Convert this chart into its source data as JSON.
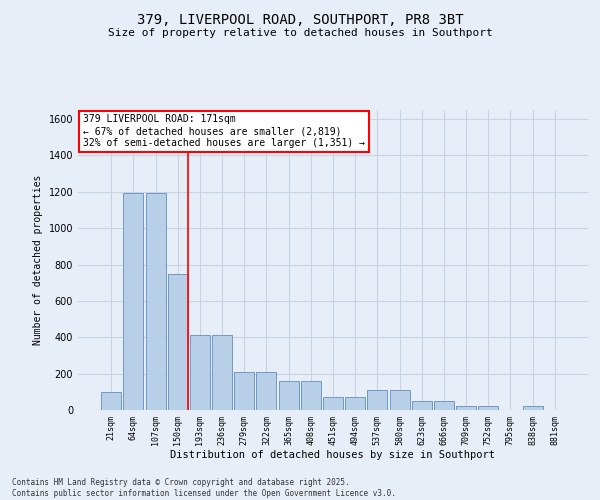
{
  "title": "379, LIVERPOOL ROAD, SOUTHPORT, PR8 3BT",
  "subtitle": "Size of property relative to detached houses in Southport",
  "xlabel": "Distribution of detached houses by size in Southport",
  "ylabel": "Number of detached properties",
  "categories": [
    "21sqm",
    "64sqm",
    "107sqm",
    "150sqm",
    "193sqm",
    "236sqm",
    "279sqm",
    "322sqm",
    "365sqm",
    "408sqm",
    "451sqm",
    "494sqm",
    "537sqm",
    "580sqm",
    "623sqm",
    "666sqm",
    "709sqm",
    "752sqm",
    "795sqm",
    "838sqm",
    "881sqm"
  ],
  "values": [
    100,
    1195,
    1195,
    750,
    415,
    415,
    210,
    210,
    160,
    160,
    70,
    70,
    110,
    110,
    50,
    50,
    20,
    20,
    0,
    20,
    0
  ],
  "bar_color": "#b8cfe8",
  "bar_edge_color": "#6090c0",
  "grid_color": "#c8d4e4",
  "background_color": "#e8eef8",
  "vline_x_index": 3,
  "vline_color": "red",
  "annotation_text": "379 LIVERPOOL ROAD: 171sqm\n← 67% of detached houses are smaller (2,819)\n32% of semi-detached houses are larger (1,351) →",
  "annotation_box_color": "white",
  "annotation_box_edge_color": "red",
  "ylim": [
    0,
    1650
  ],
  "yticks": [
    0,
    200,
    400,
    600,
    800,
    1000,
    1200,
    1400,
    1600
  ],
  "footer_line1": "Contains HM Land Registry data © Crown copyright and database right 2025.",
  "footer_line2": "Contains public sector information licensed under the Open Government Licence v3.0."
}
